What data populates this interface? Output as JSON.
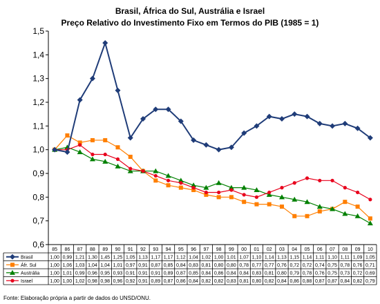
{
  "chart_data": {
    "type": "line",
    "title": "Brasil, África do Sul, Austrália e Israel",
    "subtitle": "Preço Relativo do Investimento Fixo em Termos do PIB (1985 = 1)",
    "ylim": [
      0.6,
      1.5
    ],
    "yticks": [
      "0,6",
      "0,7",
      "0,8",
      "0,9",
      "1,0",
      "1,1",
      "1,2",
      "1,3",
      "1,4",
      "1,5"
    ],
    "categories": [
      "85",
      "86",
      "87",
      "88",
      "89",
      "90",
      "91",
      "92",
      "93",
      "94",
      "95",
      "96",
      "97",
      "98",
      "99",
      "00",
      "01",
      "02",
      "03",
      "04",
      "05",
      "06",
      "07",
      "08",
      "09",
      "10"
    ],
    "grid": false,
    "legend": "data-table-left",
    "series": [
      {
        "name": "Brasil",
        "color": "#1f3c78",
        "marker": "diamond",
        "values": [
          1.0,
          0.99,
          1.21,
          1.3,
          1.45,
          1.25,
          1.05,
          1.13,
          1.17,
          1.17,
          1.12,
          1.04,
          1.02,
          1.0,
          1.01,
          1.07,
          1.1,
          1.14,
          1.13,
          1.15,
          1.14,
          1.11,
          1.1,
          1.11,
          1.09,
          1.05
        ],
        "labels": [
          "1,00",
          "0,99",
          "1,21",
          "1,30",
          "1,45",
          "1,25",
          "1,05",
          "1,13",
          "1,17",
          "1,17",
          "1,12",
          "1,04",
          "1,02",
          "1,00",
          "1,01",
          "1,07",
          "1,10",
          "1,14",
          "1,13",
          "1,15",
          "1,14",
          "1,11",
          "1,10",
          "1,11",
          "1,09",
          "1,05"
        ]
      },
      {
        "name": "Áfr. Sul",
        "color": "#ff7f00",
        "marker": "square",
        "values": [
          1.0,
          1.06,
          1.03,
          1.04,
          1.04,
          1.01,
          0.97,
          0.91,
          0.87,
          0.85,
          0.84,
          0.83,
          0.81,
          0.8,
          0.8,
          0.78,
          0.77,
          0.77,
          0.76,
          0.72,
          0.72,
          0.74,
          0.75,
          0.78,
          0.76,
          0.71
        ],
        "labels": [
          "1,00",
          "1,06",
          "1,03",
          "1,04",
          "1,04",
          "1,01",
          "0,97",
          "0,91",
          "0,87",
          "0,85",
          "0,84",
          "0,83",
          "0,81",
          "0,80",
          "0,80",
          "0,78",
          "0,77",
          "0,77",
          "0,76",
          "0,72",
          "0,72",
          "0,74",
          "0,75",
          "0,78",
          "0,76",
          "0,71"
        ]
      },
      {
        "name": "Austrália",
        "color": "#008000",
        "marker": "triangle",
        "values": [
          1.0,
          1.01,
          0.99,
          0.96,
          0.95,
          0.93,
          0.91,
          0.91,
          0.91,
          0.89,
          0.87,
          0.85,
          0.84,
          0.86,
          0.84,
          0.84,
          0.83,
          0.81,
          0.8,
          0.79,
          0.78,
          0.76,
          0.75,
          0.73,
          0.72,
          0.69
        ],
        "labels": [
          "1,00",
          "1,01",
          "0,99",
          "0,96",
          "0,95",
          "0,93",
          "0,91",
          "0,91",
          "0,91",
          "0,89",
          "0,87",
          "0,85",
          "0,84",
          "0,86",
          "0,84",
          "0,84",
          "0,83",
          "0,81",
          "0,80",
          "0,79",
          "0,78",
          "0,76",
          "0,75",
          "0,73",
          "0,72",
          "0,69"
        ]
      },
      {
        "name": "Israel",
        "color": "#e8001c",
        "marker": "circle",
        "values": [
          1.0,
          1.0,
          1.02,
          0.98,
          0.98,
          0.96,
          0.92,
          0.91,
          0.89,
          0.87,
          0.86,
          0.84,
          0.82,
          0.82,
          0.83,
          0.81,
          0.8,
          0.82,
          0.84,
          0.86,
          0.88,
          0.87,
          0.87,
          0.84,
          0.82,
          0.79
        ],
        "labels": [
          "1,00",
          "1,00",
          "1,02",
          "0,98",
          "0,98",
          "0,96",
          "0,92",
          "0,91",
          "0,89",
          "0,87",
          "0,86",
          "0,84",
          "0,82",
          "0,82",
          "0,83",
          "0,81",
          "0,80",
          "0,82",
          "0,84",
          "0,86",
          "0,88",
          "0,87",
          "0,87",
          "0,84",
          "0,82",
          "0,79"
        ]
      }
    ]
  },
  "footnote": "Fonte: Elaboração própria a partir de dados do UNSD/ONU."
}
